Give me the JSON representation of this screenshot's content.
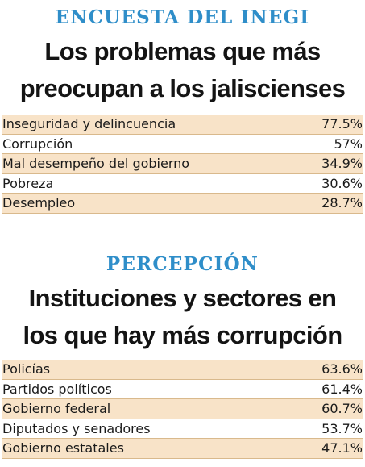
{
  "chart_data": [
    {
      "type": "table",
      "kicker": "ENCUESTA DEL INEGI",
      "title_lines": [
        "Los problemas que más",
        "preocupan a los jaliscienses"
      ],
      "categories": [
        "Inseguridad y delincuencia",
        "Corrupción",
        "Mal desempeño del gobierno",
        "Pobreza",
        "Desempleo"
      ],
      "values": [
        77.5,
        57,
        34.9,
        30.6,
        28.7
      ],
      "value_labels": [
        "77.5%",
        "57%",
        "34.9%",
        "30.6%",
        "28.7%"
      ]
    },
    {
      "type": "table",
      "kicker": "PERCEPCIÓN",
      "title_lines": [
        "Instituciones y sectores en",
        "los que hay más corrupción"
      ],
      "categories": [
        "Policías",
        "Partidos políticos",
        "Gobierno federal",
        "Diputados y senadores",
        "Gobierno estatales"
      ],
      "values": [
        63.6,
        61.4,
        60.7,
        53.7,
        47.1
      ],
      "value_labels": [
        "63.6%",
        "61.4%",
        "60.7%",
        "53.7%",
        "47.1%"
      ]
    }
  ],
  "colors": {
    "kicker": "#2f8ec9",
    "row_shade": "#f8e3c8",
    "row_rule": "#d9b98c"
  }
}
